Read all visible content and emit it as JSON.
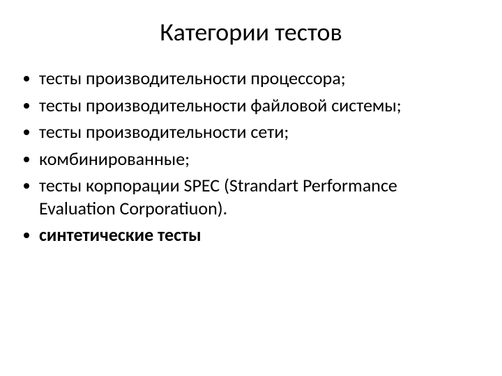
{
  "slide": {
    "title": "Категории тестов",
    "title_fontsize": 36,
    "title_color": "#000000",
    "background_color": "#ffffff",
    "bullets": [
      {
        "text": "тесты производительности процессора;",
        "bold": false
      },
      {
        "text": "тесты производительности файловой системы;",
        "bold": false
      },
      {
        "text": "тесты производительности сети;",
        "bold": false
      },
      {
        "text": "комбинированные;",
        "bold": false
      },
      {
        "text": "тесты корпорации SPEC (Strandart Performance Evaluation Corporatiuon).",
        "bold": false
      },
      {
        "text": "синтетические тесты",
        "bold": true
      }
    ],
    "bullet_fontsize": 26,
    "bullet_color": "#000000",
    "bullet_marker_color": "#000000"
  }
}
